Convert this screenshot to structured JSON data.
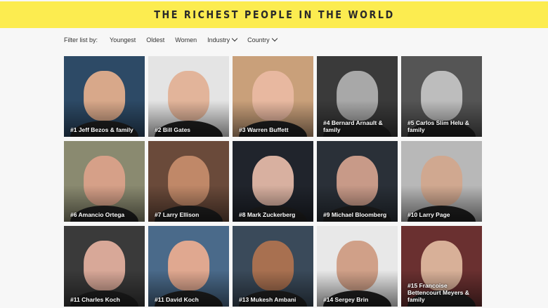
{
  "header": {
    "title": "THE RICHEST PEOPLE IN THE WORLD",
    "background": "#fcec50"
  },
  "filters": {
    "label": "Filter list by:",
    "items": [
      {
        "label": "Youngest",
        "dropdown": false
      },
      {
        "label": "Oldest",
        "dropdown": false
      },
      {
        "label": "Women",
        "dropdown": false
      },
      {
        "label": "Industry",
        "dropdown": true
      },
      {
        "label": "Country",
        "dropdown": true
      }
    ]
  },
  "people": [
    {
      "label": "#1 Jeff Bezos & family",
      "bg": "#2d4a66",
      "skin": "#d8a88a"
    },
    {
      "label": "#2 Bill Gates",
      "bg": "#e4e4e4",
      "skin": "#e2b49a"
    },
    {
      "label": "#3 Warren Buffett",
      "bg": "#c9a07a",
      "skin": "#e8b8a0"
    },
    {
      "label": "#4 Bernard Arnault & family",
      "bg": "#3a3a3a",
      "skin": "#a8a8a8"
    },
    {
      "label": "#5 Carlos Slim Helu & family",
      "bg": "#555555",
      "skin": "#bdbdbd"
    },
    {
      "label": "#6 Amancio Ortega",
      "bg": "#8a8a70",
      "skin": "#d6a088"
    },
    {
      "label": "#7 Larry Ellison",
      "bg": "#6a4a3a",
      "skin": "#c08868"
    },
    {
      "label": "#8 Mark Zuckerberg",
      "bg": "#20242c",
      "skin": "#d8b0a0"
    },
    {
      "label": "#9 Michael Bloomberg",
      "bg": "#2a3038",
      "skin": "#c89a88"
    },
    {
      "label": "#10 Larry Page",
      "bg": "#b8b8b8",
      "skin": "#d0a890"
    },
    {
      "label": "#11 Charles Koch",
      "bg": "#3a3a3a",
      "skin": "#d8a898"
    },
    {
      "label": "#11 David Koch",
      "bg": "#4a6a8a",
      "skin": "#e0a890"
    },
    {
      "label": "#13 Mukesh Ambani",
      "bg": "#3a4a5a",
      "skin": "#a87050"
    },
    {
      "label": "#14 Sergey Brin",
      "bg": "#e8e8e8",
      "skin": "#d0a088"
    },
    {
      "label": "#15 Francoise Bettencourt Meyers & family",
      "bg": "#6a3030",
      "skin": "#d8b098"
    }
  ]
}
